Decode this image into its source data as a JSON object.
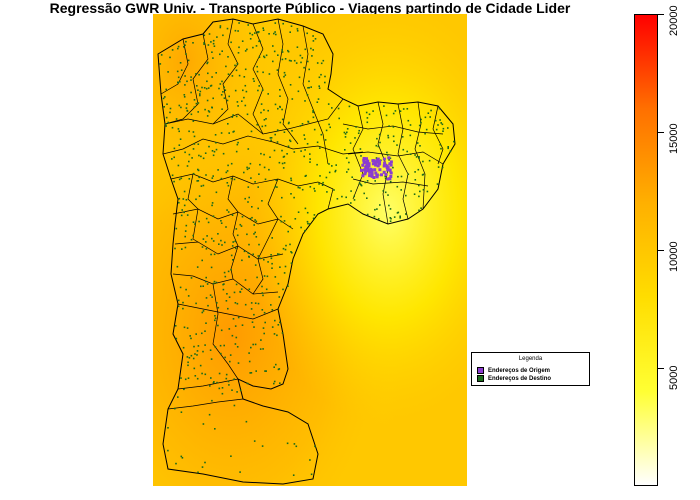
{
  "title": "Regressão GWR Univ. - Transporte Público - Viagens partindo de Cidade Lider",
  "legend": {
    "title": "Legenda",
    "items": [
      {
        "label": "Endereços de Origem",
        "color": "#8a3ccf"
      },
      {
        "label": "Endereços de Destino",
        "color": "#1a6b1a"
      }
    ]
  },
  "colorbar": {
    "min": 0,
    "max": 20000,
    "ticks": [
      "5000",
      "10000",
      "15000",
      "20000"
    ],
    "tick_values": [
      5000,
      10000,
      15000,
      20000
    ],
    "colors": [
      "#ffffff",
      "#ffff33",
      "#ffdd00",
      "#ffb000",
      "#ff7000",
      "#ff0000"
    ]
  },
  "map": {
    "background_color": "#ffd000",
    "border_color": "#000000",
    "origin_color": "#8a3ccf",
    "destination_color": "#1a6b1a"
  }
}
